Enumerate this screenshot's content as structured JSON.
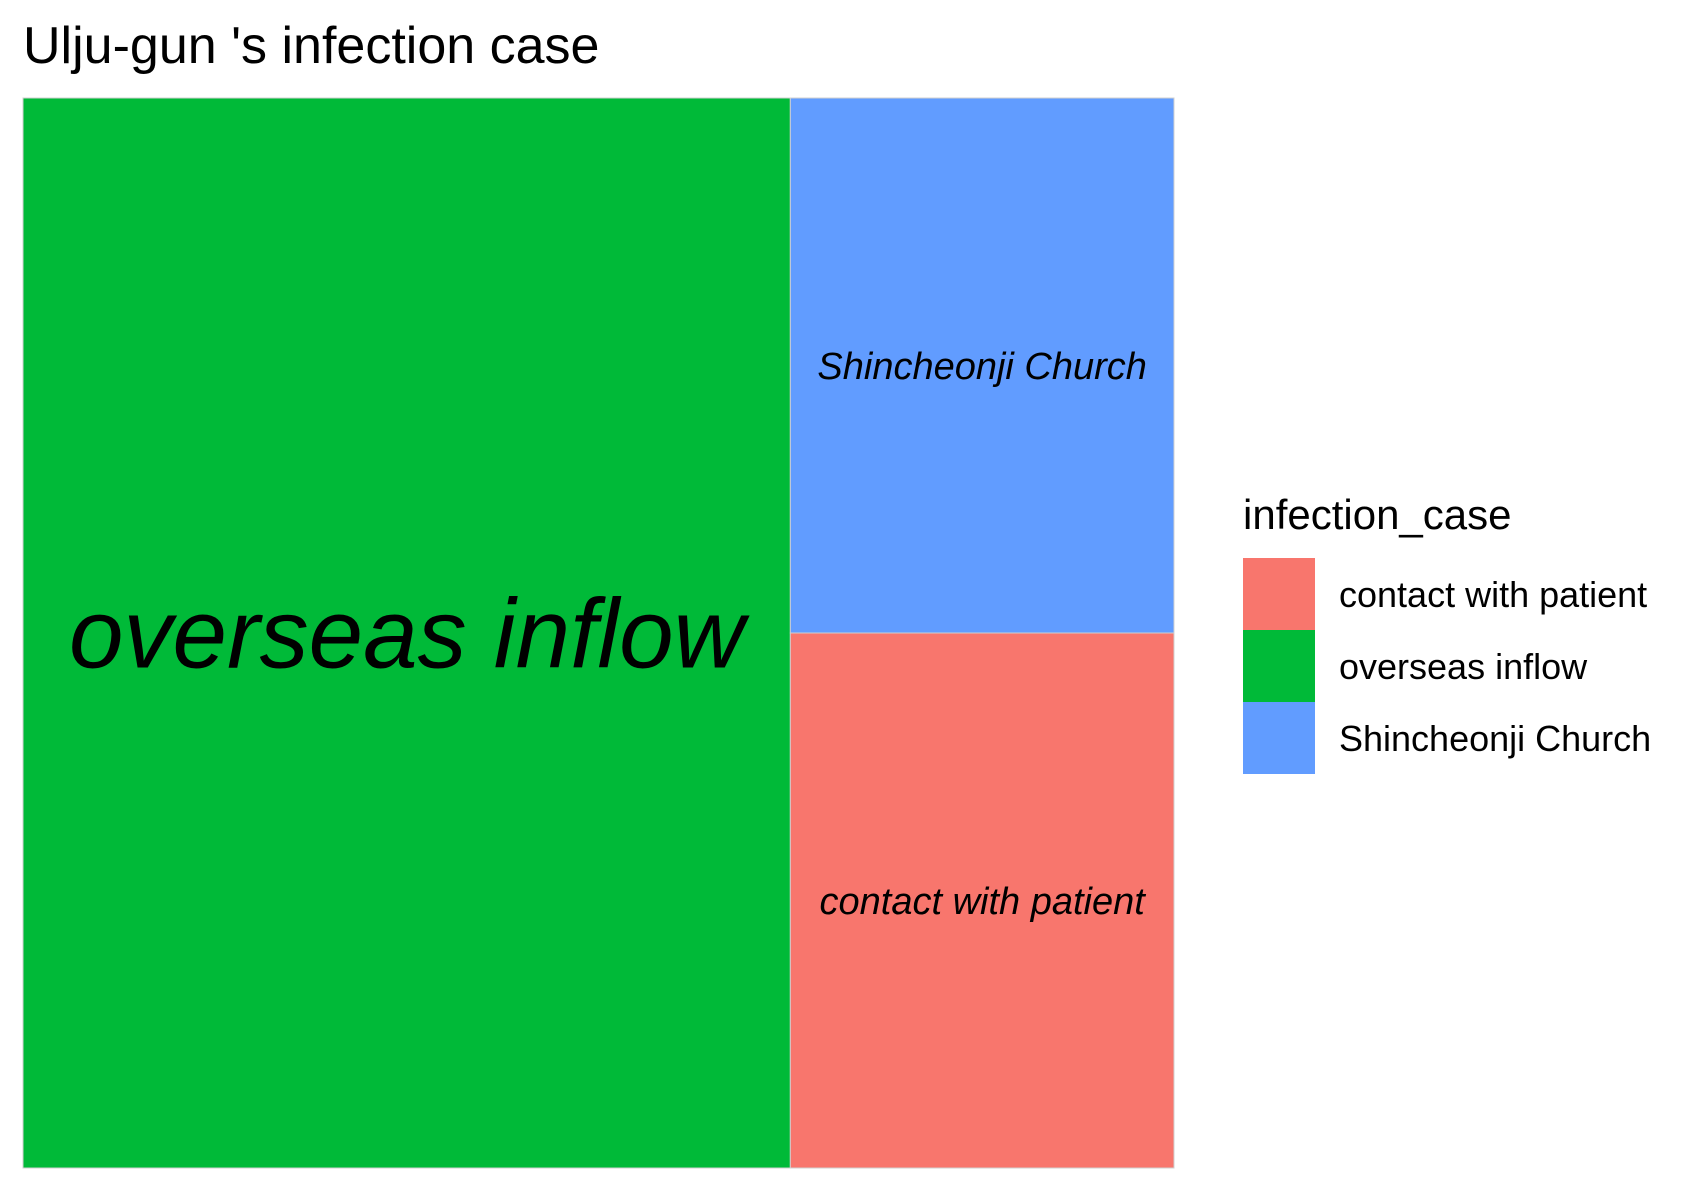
{
  "chart_data": {
    "type": "treemap",
    "title": "Ulju-gun 's infection case",
    "legend_title": "infection_case",
    "legend_position": "right",
    "categories": [
      "contact with patient",
      "overseas inflow",
      "Shincheonji Church"
    ],
    "values": [
      1,
      4,
      1
    ],
    "colors": {
      "contact with patient": "#F8766D",
      "overseas inflow": "#00BA38",
      "Shincheonji Church": "#619CFF"
    }
  }
}
